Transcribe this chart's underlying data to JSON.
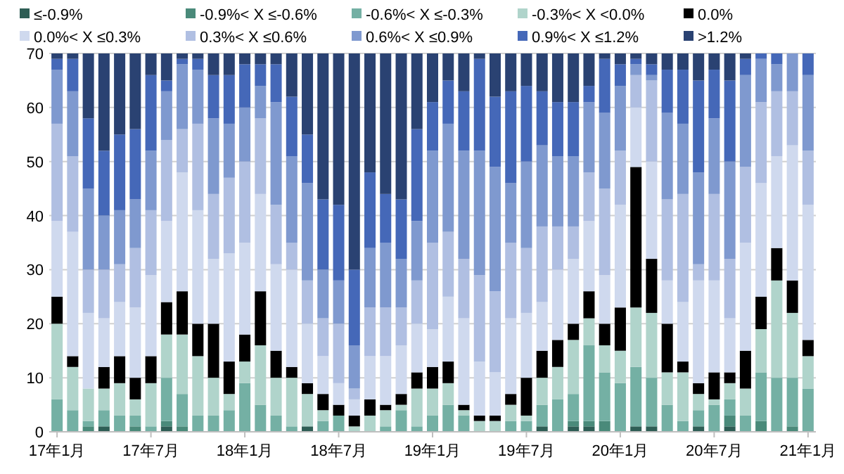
{
  "chart_data": {
    "type": "bar",
    "stacked": true,
    "legend": "top",
    "grid": "y",
    "ylim": [
      0,
      70
    ],
    "yticks": [
      0,
      10,
      20,
      30,
      40,
      50,
      60,
      70
    ],
    "categories": [
      "17年1月",
      null,
      null,
      null,
      null,
      null,
      "17年7月",
      null,
      null,
      null,
      null,
      null,
      "18年1月",
      null,
      null,
      null,
      null,
      null,
      "18年7月",
      null,
      null,
      null,
      null,
      null,
      "19年1月",
      null,
      null,
      null,
      null,
      null,
      "19年7月",
      null,
      null,
      null,
      null,
      null,
      "20年1月",
      null,
      null,
      null,
      null,
      null,
      "20年7月",
      null,
      null,
      null,
      null,
      null,
      "21年1月"
    ],
    "series": [
      {
        "name": "≤-0.9%",
        "color": "#2e5e55",
        "values": [
          0,
          0,
          0,
          1,
          0,
          0,
          0,
          1,
          0,
          0,
          0,
          0,
          0,
          0,
          0,
          0,
          1,
          0,
          0,
          0,
          0,
          0,
          0,
          0,
          0,
          0,
          0,
          0,
          0,
          0,
          0,
          1,
          0,
          1,
          1,
          0,
          0,
          1,
          1,
          0,
          0,
          1,
          0,
          1,
          0,
          0,
          0,
          0,
          0
        ]
      },
      {
        "name": "-0.9%< X ≤-0.6%",
        "color": "#4a8a7a",
        "values": [
          0,
          0,
          1,
          0,
          0,
          1,
          0,
          1,
          1,
          0,
          0,
          0,
          0,
          0,
          0,
          0,
          0,
          0,
          0,
          0,
          0,
          0,
          0,
          0,
          0,
          0,
          0,
          0,
          0,
          0,
          0,
          0,
          0,
          1,
          1,
          2,
          0,
          0,
          0,
          0,
          0,
          0,
          0,
          2,
          0,
          2,
          0,
          1,
          0
        ]
      },
      {
        "name": "-0.6%< X ≤-0.3%",
        "color": "#74b0a4",
        "values": [
          6,
          4,
          1,
          3,
          3,
          2,
          1,
          8,
          6,
          3,
          3,
          4,
          9,
          5,
          3,
          1,
          0,
          2,
          3,
          0,
          0,
          1,
          4,
          1,
          3,
          5,
          3,
          0,
          0,
          2,
          2,
          4,
          6,
          5,
          14,
          9,
          9,
          11,
          9,
          5,
          2,
          3,
          5,
          3,
          3,
          9,
          10,
          9,
          8
        ]
      },
      {
        "name": "-0.3%< X <0.0%",
        "color": "#b0d4cb",
        "values": [
          14,
          8,
          6,
          4,
          6,
          3,
          8,
          8,
          11,
          11,
          7,
          3,
          4,
          11,
          7,
          9,
          6,
          2,
          0,
          1,
          3,
          3,
          1,
          7,
          5,
          4,
          1,
          2,
          2,
          3,
          1,
          5,
          6,
          10,
          5,
          5,
          6,
          11,
          12,
          6,
          9,
          3,
          1,
          3,
          5,
          8,
          18,
          12,
          6
        ]
      },
      {
        "name": "0.0%",
        "color": "#000000",
        "values": [
          5,
          2,
          0,
          4,
          5,
          4,
          5,
          6,
          8,
          6,
          10,
          6,
          5,
          10,
          5,
          2,
          2,
          3,
          2,
          2,
          3,
          1,
          2,
          3,
          4,
          4,
          1,
          1,
          1,
          2,
          7,
          5,
          5,
          3,
          5,
          4,
          8,
          26,
          10,
          9,
          2,
          2,
          5,
          2,
          7,
          6,
          6,
          6,
          3
        ]
      },
      {
        "name": "0.0%< X ≤0.3%",
        "color": "#cfd9ee",
        "values": [
          14,
          23,
          14,
          9,
          10,
          13,
          15,
          15,
          22,
          21,
          12,
          20,
          17,
          18,
          16,
          18,
          11,
          7,
          4,
          3,
          8,
          9,
          9,
          9,
          7,
          12,
          16,
          10,
          8,
          14,
          12,
          9,
          13,
          12,
          13,
          9,
          19,
          11,
          18,
          8,
          11,
          19,
          17,
          10,
          20,
          21,
          17,
          25,
          25
        ]
      },
      {
        "name": "0.3%< X ≤0.6%",
        "color": "#b0bfe2",
        "values": [
          18,
          14,
          8,
          9,
          7,
          11,
          12,
          15,
          8,
          16,
          12,
          14,
          15,
          14,
          11,
          5,
          8,
          7,
          11,
          2,
          9,
          9,
          7,
          8,
          16,
          12,
          11,
          16,
          15,
          14,
          12,
          14,
          8,
          6,
          9,
          16,
          10,
          6,
          15,
          15,
          20,
          3,
          16,
          11,
          14,
          15,
          12,
          10,
          10
        ]
      },
      {
        "name": "0.6%< X ≤0.9%",
        "color": "#7f99cf",
        "values": [
          10,
          12,
          15,
          10,
          10,
          9,
          11,
          9,
          12,
          10,
          14,
          10,
          10,
          6,
          19,
          16,
          18,
          9,
          8,
          8,
          11,
          12,
          9,
          11,
          17,
          20,
          20,
          23,
          23,
          11,
          16,
          15,
          13,
          13,
          13,
          14,
          12,
          2,
          1,
          16,
          13,
          17,
          14,
          18,
          17,
          8,
          5,
          7,
          14
        ]
      },
      {
        "name": "0.9%< X ≤1.2%",
        "color": "#4568b8",
        "values": [
          2,
          6,
          13,
          12,
          14,
          13,
          14,
          2,
          1,
          2,
          8,
          9,
          8,
          4,
          7,
          11,
          9,
          13,
          14,
          14,
          14,
          9,
          11,
          17,
          9,
          8,
          11,
          17,
          13,
          17,
          14,
          10,
          10,
          10,
          3,
          10,
          4,
          1,
          2,
          8,
          10,
          17,
          9,
          15,
          3,
          1,
          2,
          0,
          4
        ]
      },
      {
        "name": ">1.2%",
        "color": "#2a4272",
        "values": [
          1,
          1,
          12,
          18,
          15,
          14,
          4,
          5,
          1,
          1,
          4,
          4,
          2,
          2,
          2,
          8,
          15,
          27,
          28,
          40,
          22,
          26,
          27,
          14,
          9,
          5,
          7,
          1,
          8,
          7,
          6,
          7,
          9,
          9,
          6,
          1,
          2,
          1,
          2,
          3,
          3,
          5,
          3,
          5,
          1,
          0,
          0,
          0,
          0
        ]
      }
    ]
  }
}
